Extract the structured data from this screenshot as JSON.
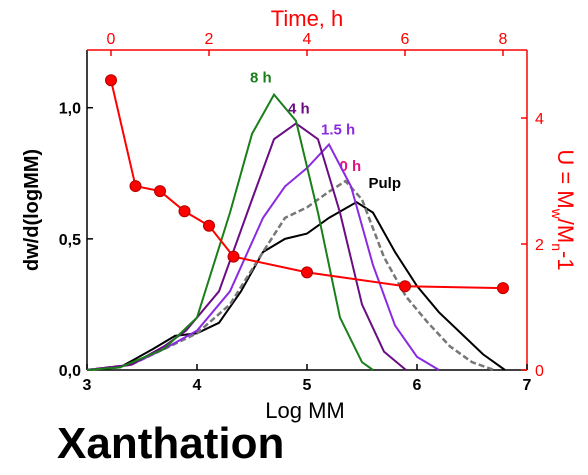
{
  "chart_data": {
    "type": "line",
    "xlabel": "Log MM",
    "ylabel": "dw/d(logMM)",
    "x2label": "Time, h",
    "y2label": [
      "U = M",
      "w",
      "/M",
      "n",
      "-1"
    ],
    "xlim": [
      3,
      7
    ],
    "xticks": [
      3,
      4,
      5,
      6,
      7
    ],
    "ylim": [
      0,
      1.22
    ],
    "yticks": [
      {
        "value": 0,
        "label": "0,0"
      },
      {
        "value": 0.5,
        "label": "0,5"
      },
      {
        "value": 1,
        "label": "1,0"
      }
    ],
    "x2lim": [
      -0.49,
      8.49
    ],
    "x2ticks": [
      0,
      2,
      4,
      6,
      8
    ],
    "y2lim": [
      0,
      5.08
    ],
    "y2ticks": [
      0,
      2,
      4
    ],
    "axis_color2": "#ff0000",
    "series": [
      {
        "name": "Pulp",
        "color": "#000000",
        "label_color": "#000000",
        "dashed": false,
        "x": [
          3.0,
          3.3,
          3.6,
          3.8,
          4.0,
          4.2,
          4.4,
          4.6,
          4.8,
          5.0,
          5.2,
          5.45,
          5.6,
          5.8,
          6.0,
          6.2,
          6.4,
          6.6,
          6.8
        ],
        "values": [
          0,
          0.01,
          0.08,
          0.13,
          0.14,
          0.18,
          0.3,
          0.45,
          0.5,
          0.52,
          0.58,
          0.64,
          0.6,
          0.45,
          0.32,
          0.22,
          0.14,
          0.06,
          0
        ]
      },
      {
        "name": "0 h",
        "color": "#777777",
        "label_color": "#e0127d",
        "dashed": true,
        "x": [
          3.0,
          3.4,
          3.7,
          4.0,
          4.3,
          4.6,
          4.8,
          5.0,
          5.2,
          5.35,
          5.5,
          5.7,
          5.9,
          6.1,
          6.3,
          6.5,
          6.7
        ],
        "values": [
          0,
          0.02,
          0.08,
          0.14,
          0.25,
          0.45,
          0.58,
          0.62,
          0.68,
          0.72,
          0.65,
          0.43,
          0.28,
          0.18,
          0.09,
          0.03,
          0
        ]
      },
      {
        "name": "1.5 h",
        "color": "#8a2be2",
        "label_color": "#8a2be2",
        "dashed": false,
        "x": [
          3.0,
          3.4,
          3.7,
          4.0,
          4.3,
          4.6,
          4.8,
          5.0,
          5.2,
          5.4,
          5.6,
          5.8,
          6.0,
          6.2
        ],
        "values": [
          0,
          0.02,
          0.08,
          0.15,
          0.3,
          0.58,
          0.7,
          0.77,
          0.86,
          0.7,
          0.4,
          0.17,
          0.05,
          0
        ]
      },
      {
        "name": "4 h",
        "color": "#6a0d83",
        "label_color": "#6a0d83",
        "dashed": false,
        "x": [
          3.0,
          3.4,
          3.7,
          3.9,
          4.2,
          4.5,
          4.7,
          4.9,
          5.1,
          5.3,
          5.5,
          5.7,
          5.9
        ],
        "values": [
          0,
          0.02,
          0.09,
          0.15,
          0.3,
          0.65,
          0.88,
          0.94,
          0.88,
          0.6,
          0.25,
          0.07,
          0
        ]
      },
      {
        "name": "8 h",
        "color": "#1a7f1a",
        "label_color": "#1a7f1a",
        "dashed": false,
        "x": [
          3.0,
          3.3,
          3.7,
          4.0,
          4.3,
          4.5,
          4.7,
          4.9,
          5.1,
          5.3,
          5.5,
          5.6
        ],
        "values": [
          0,
          0.01,
          0.08,
          0.2,
          0.6,
          0.9,
          1.05,
          0.95,
          0.6,
          0.2,
          0.03,
          0
        ]
      },
      {
        "name": "U",
        "color": "#ff0000",
        "xaxis": "x2",
        "axis": "y2",
        "x": [
          0,
          0.5,
          1,
          1.5,
          2,
          2.5,
          4,
          6,
          8
        ],
        "values": [
          4.6,
          2.92,
          2.84,
          2.52,
          2.29,
          1.8,
          1.55,
          1.33,
          1.3
        ]
      }
    ],
    "annotation": "Xanthation"
  }
}
